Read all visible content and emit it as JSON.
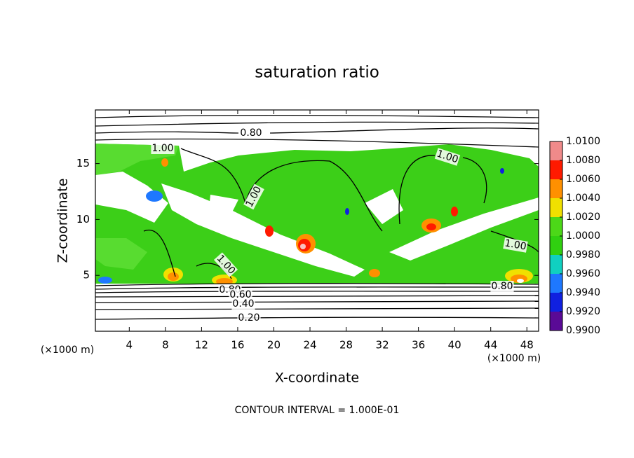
{
  "chart_data": {
    "type": "contour",
    "title": "saturation ratio",
    "xlabel": "X-coordinate",
    "ylabel": "Z-coordinate",
    "x_unit_label": "(×1000 m)",
    "footer": "CONTOUR INTERVAL = 1.000E-01",
    "xlim": [
      0.25,
      49.3
    ],
    "xticks": [
      4,
      8,
      12,
      16,
      20,
      24,
      28,
      32,
      36,
      40,
      44,
      48
    ],
    "ylim": [
      0,
      19.8
    ],
    "yticks": [
      5,
      10,
      15
    ],
    "colorbar": {
      "levels": [
        {
          "value": 0.99,
          "label": "0.9900"
        },
        {
          "value": 0.992,
          "label": "0.9920"
        },
        {
          "value": 0.994,
          "label": "0.9940"
        },
        {
          "value": 0.996,
          "label": "0.9960"
        },
        {
          "value": 0.998,
          "label": "0.9980"
        },
        {
          "value": 1.0,
          "label": "1.0000"
        },
        {
          "value": 1.002,
          "label": "1.0020"
        },
        {
          "value": 1.004,
          "label": "1.0040"
        },
        {
          "value": 1.006,
          "label": "1.0060"
        },
        {
          "value": 1.008,
          "label": "1.0080"
        },
        {
          "value": 1.01,
          "label": "1.0100"
        }
      ],
      "colors": [
        "#5a0a96",
        "#1020e0",
        "#1e78ff",
        "#10d0c0",
        "#30d010",
        "#4cd818",
        "#f0e000",
        "#ff9000",
        "#ff1a00",
        "#f08a8a"
      ]
    },
    "contour_labels": [
      "0.80",
      "1.00",
      "1.00",
      "1.00",
      "1.00",
      "1.00",
      "0.80",
      "0.60",
      "0.40",
      "0.20",
      "0.80"
    ]
  }
}
